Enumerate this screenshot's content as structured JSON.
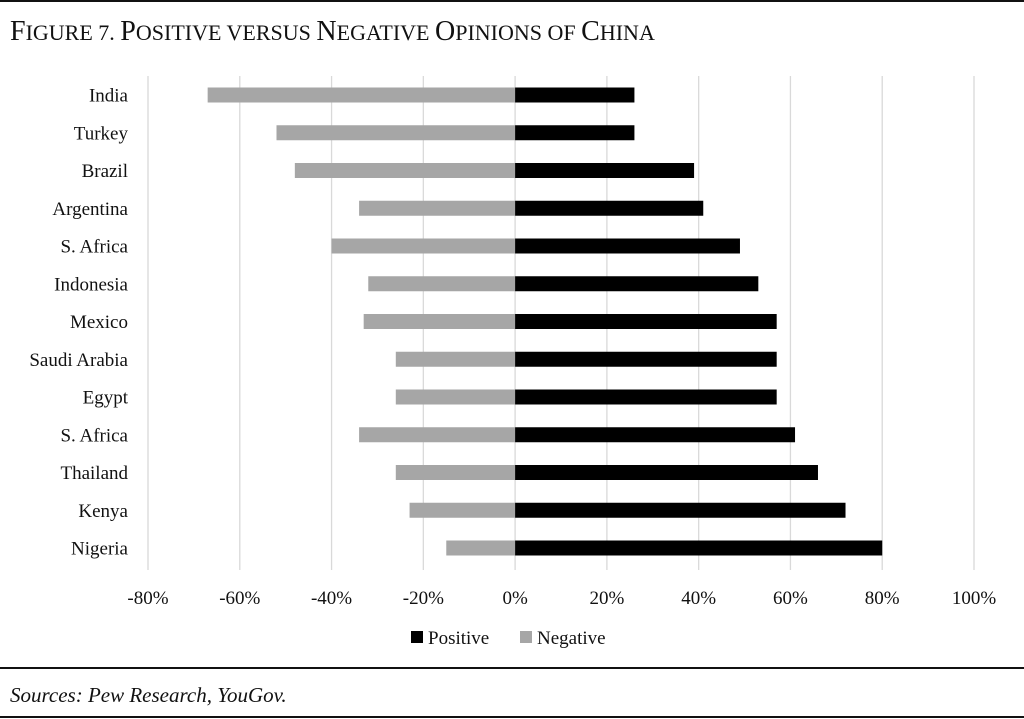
{
  "figure": {
    "title_caps": [
      "F",
      "P",
      "N",
      "O",
      "C"
    ],
    "title_parts": {
      "prefix_cap": "F",
      "prefix_rest": "IGURE 7. ",
      "p_cap": "P",
      "p_rest": "OSITIVE VERSUS ",
      "n_cap": "N",
      "n_rest": "EGATIVE ",
      "o_cap": "O",
      "o_rest": "PINIONS OF ",
      "c_cap": "C",
      "c_rest": "HINA"
    },
    "title": "Figure 7. Positive versus Negative Opinions of China",
    "sources": "Sources: Pew Research, YouGov."
  },
  "chart_data": {
    "type": "bar",
    "orientation": "horizontal",
    "stacked": "diverging",
    "title": "Figure 7. Positive versus Negative Opinions of China",
    "categories": [
      "India",
      "Turkey",
      "Brazil",
      "Argentina",
      "S. Africa",
      "Indonesia",
      "Mexico",
      "Saudi Arabia",
      "Egypt",
      "S. Africa",
      "Thailand",
      "Kenya",
      "Nigeria"
    ],
    "series": [
      {
        "name": "Positive",
        "color": "#000000",
        "values": [
          26,
          26,
          39,
          41,
          49,
          53,
          57,
          57,
          57,
          61,
          66,
          72,
          80
        ]
      },
      {
        "name": "Negative",
        "color": "#a6a6a6",
        "values": [
          -67,
          -52,
          -48,
          -34,
          -40,
          -32,
          -33,
          -26,
          -26,
          -34,
          -26,
          -23,
          -15
        ]
      }
    ],
    "xlim": [
      -80,
      100
    ],
    "xticks": [
      -80,
      -60,
      -40,
      -20,
      0,
      20,
      40,
      60,
      80,
      100
    ],
    "xtick_labels": [
      "-80%",
      "-60%",
      "-40%",
      "-20%",
      "0%",
      "20%",
      "40%",
      "60%",
      "80%",
      "100%"
    ],
    "grid": true,
    "legend_position": "bottom"
  }
}
